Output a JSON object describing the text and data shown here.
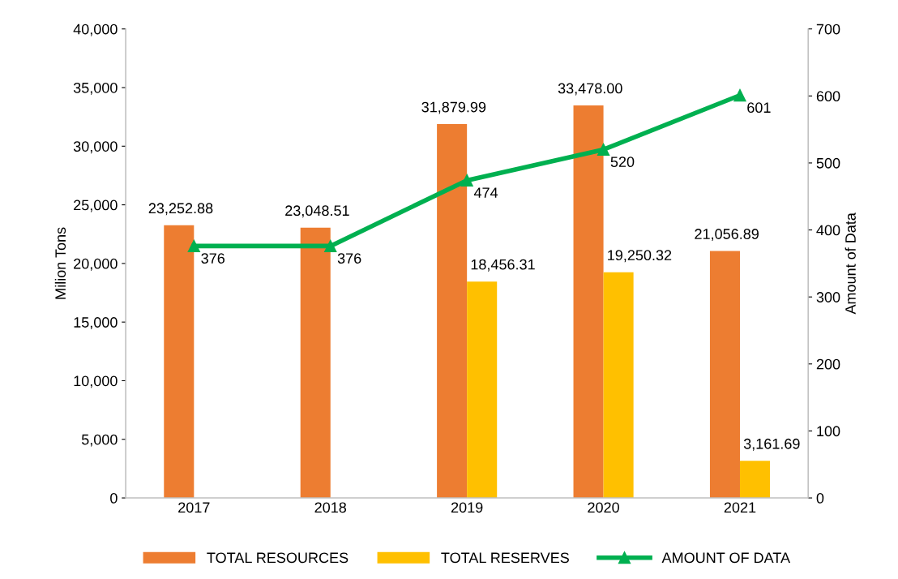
{
  "chart_data": {
    "type": "bar",
    "categories": [
      "2017",
      "2018",
      "2019",
      "2020",
      "2021"
    ],
    "ylabel": "Milion Tons",
    "y2label": "Amount of Data",
    "ylim": [
      0,
      40000
    ],
    "yticks": [
      {
        "value": 0,
        "label": "0"
      },
      {
        "value": 5000,
        "label": "5,000"
      },
      {
        "value": 10000,
        "label": "10,000"
      },
      {
        "value": 15000,
        "label": "15,000"
      },
      {
        "value": 20000,
        "label": "20,000"
      },
      {
        "value": 25000,
        "label": "25,000"
      },
      {
        "value": 30000,
        "label": "30,000"
      },
      {
        "value": 35000,
        "label": "35,000"
      },
      {
        "value": 40000,
        "label": "40,000"
      }
    ],
    "y2lim": [
      0,
      700
    ],
    "y2ticks": [
      0,
      100,
      200,
      300,
      400,
      500,
      600,
      700
    ],
    "grid": false,
    "legend": "bottom",
    "series": [
      {
        "name": "TOTAL RESOURCES",
        "color": "#ed7d31",
        "values": [
          23252.88,
          23048.51,
          31879.99,
          33478.0,
          21056.89
        ],
        "value_labels": [
          "23,252.88",
          "23,048.51",
          "31,879.99",
          "33,478.00",
          "21,056.89"
        ]
      },
      {
        "name": "TOTAL RESERVES",
        "color": "#ffc000",
        "values": [
          null,
          null,
          18456.31,
          19250.32,
          3161.69
        ],
        "value_labels": [
          null,
          null,
          "18,456.31",
          "19,250.32",
          "3,161.69"
        ]
      },
      {
        "name": "AMOUNT OF DATA",
        "type": "line",
        "axis": "y2",
        "color": "#00b050",
        "marker": "triangle",
        "values": [
          376,
          376,
          474,
          520,
          601
        ],
        "value_labels": [
          "376",
          "376",
          "474",
          "520",
          "601"
        ]
      }
    ]
  }
}
